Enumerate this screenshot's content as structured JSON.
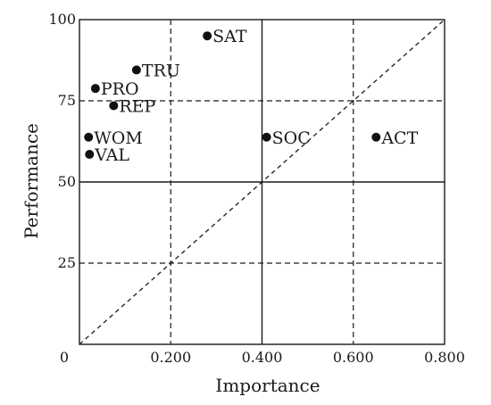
{
  "chart_data": {
    "type": "scatter",
    "xlabel": "Importance",
    "ylabel": "Performance",
    "xlim": [
      0,
      0.8
    ],
    "ylim": [
      0,
      100
    ],
    "x_ticks": [
      {
        "value": 0,
        "label": "0"
      },
      {
        "value": 0.2,
        "label": "0.200"
      },
      {
        "value": 0.4,
        "label": "0.400"
      },
      {
        "value": 0.6,
        "label": "0.600"
      },
      {
        "value": 0.8,
        "label": "0.800"
      }
    ],
    "y_ticks": [
      {
        "value": 25,
        "label": "25"
      },
      {
        "value": 50,
        "label": "50"
      },
      {
        "value": 75,
        "label": "75"
      },
      {
        "value": 100,
        "label": "100"
      }
    ],
    "solid_gridlines": {
      "x": [
        0.4
      ],
      "y": [
        50
      ]
    },
    "dashed_gridlines": {
      "x": [
        0.2,
        0.6
      ],
      "y": [
        25,
        75
      ]
    },
    "diagonal_reference": {
      "from": [
        0,
        0
      ],
      "to": [
        0.8,
        100
      ],
      "style": "dashed"
    },
    "points": [
      {
        "label": "SAT",
        "x": 0.28,
        "y": 95
      },
      {
        "label": "TRU",
        "x": 0.125,
        "y": 84.5
      },
      {
        "label": "PRO",
        "x": 0.035,
        "y": 78.8
      },
      {
        "label": "REP",
        "x": 0.075,
        "y": 73.5
      },
      {
        "label": "WOM",
        "x": 0.02,
        "y": 63.8
      },
      {
        "label": "VAL",
        "x": 0.022,
        "y": 58.5
      },
      {
        "label": "SOC",
        "x": 0.41,
        "y": 63.8
      },
      {
        "label": "ACT",
        "x": 0.65,
        "y": 63.8
      }
    ]
  }
}
